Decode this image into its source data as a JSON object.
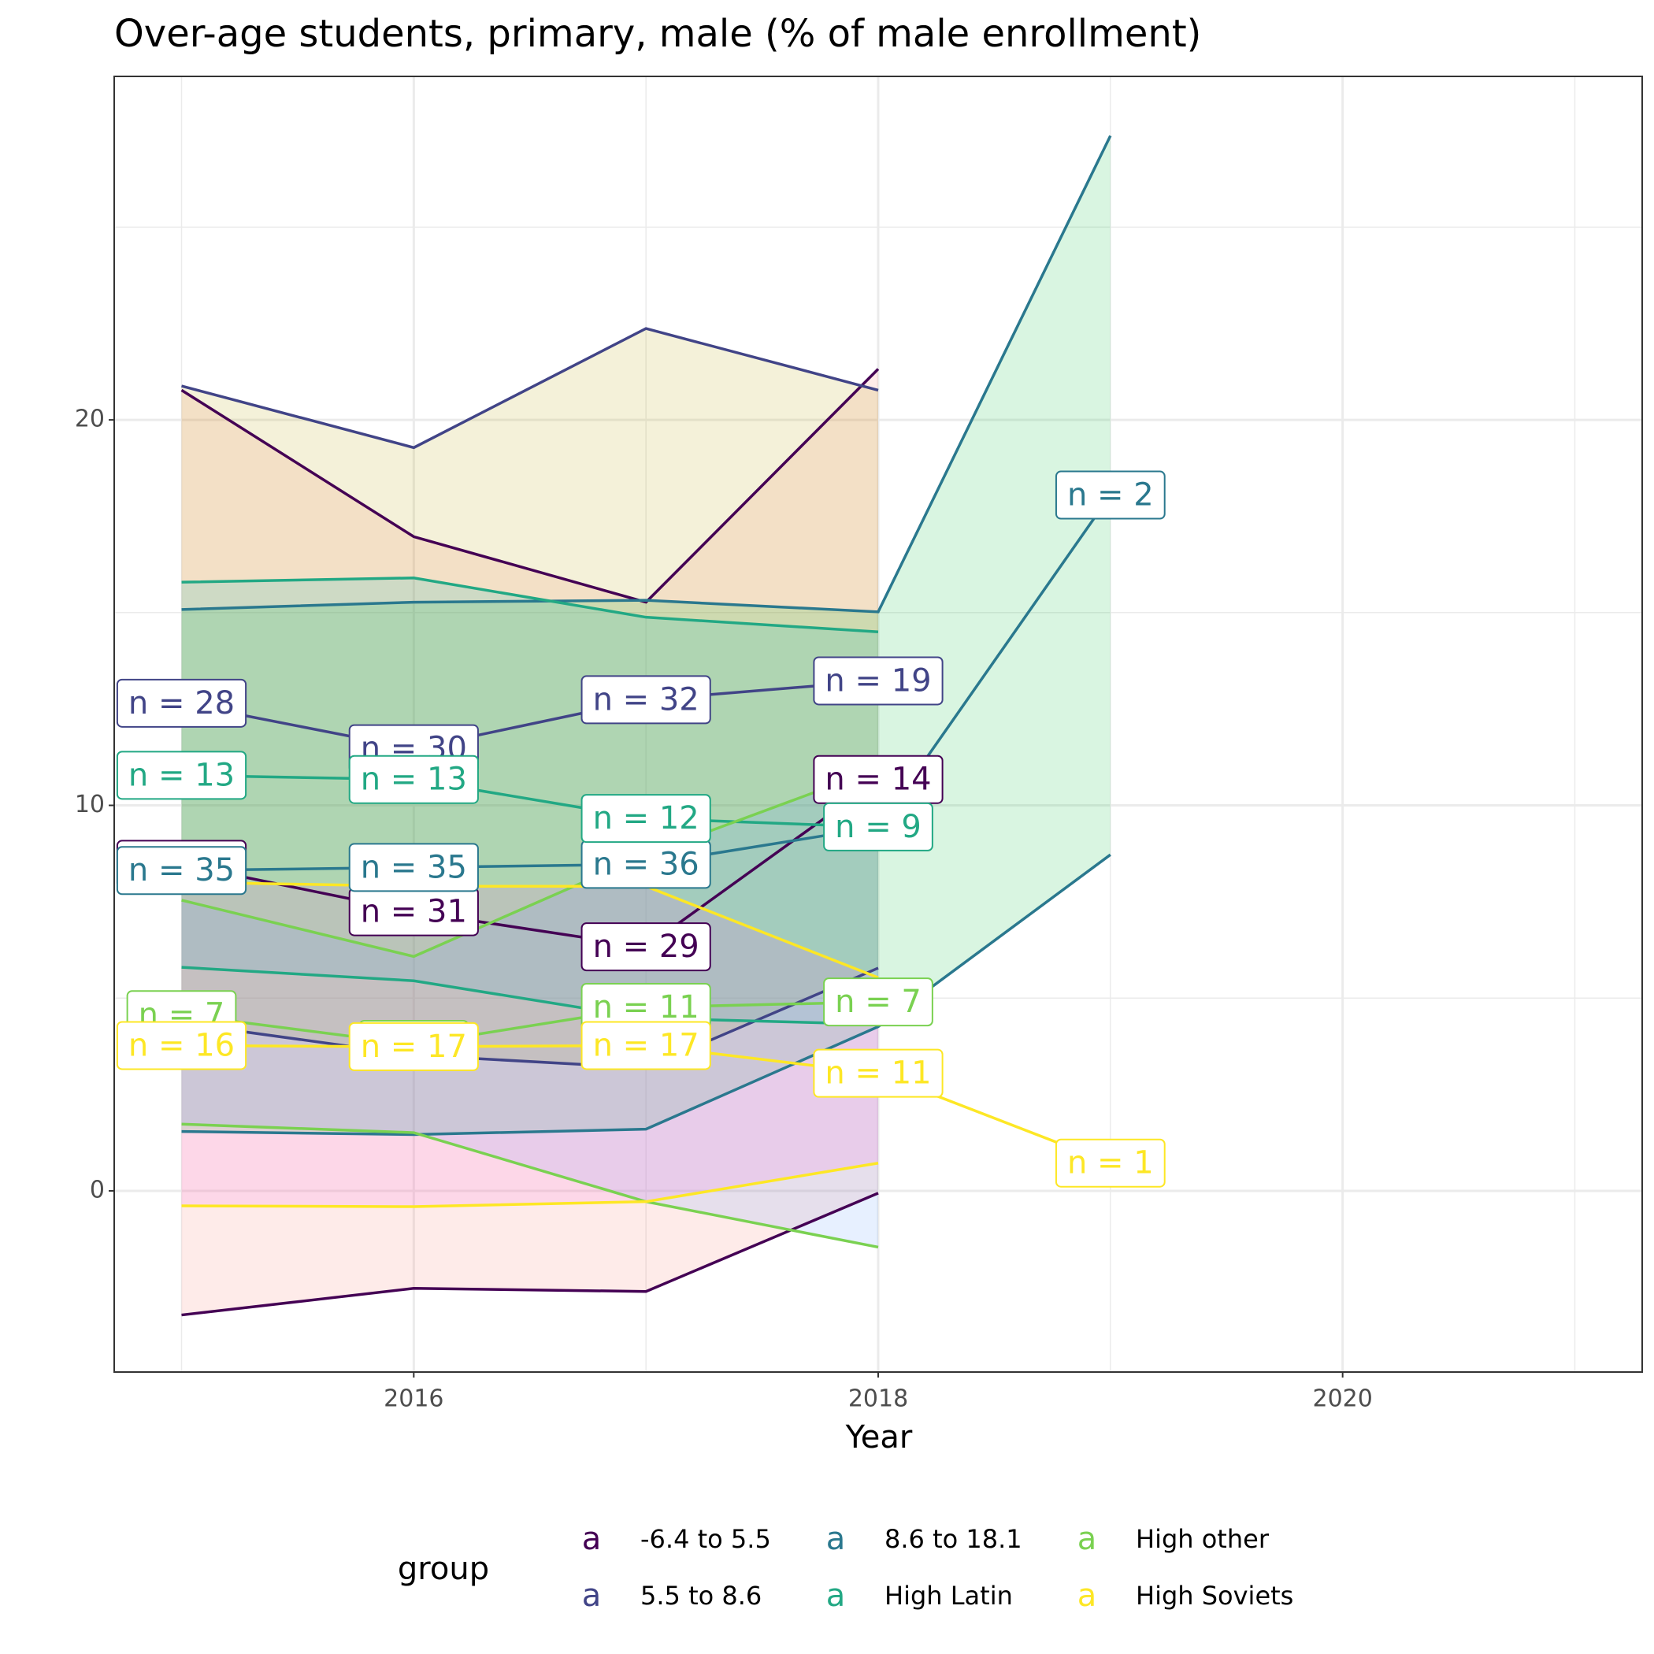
{
  "chart_data": {
    "type": "line",
    "title": "Over-age students, primary, male (% of male enrollment)",
    "x_label": "Year",
    "legend_title": "group",
    "legend_key_glyph": "a",
    "x": [
      2015,
      2016,
      2017,
      2018,
      2019
    ],
    "xlim": [
      2014.71,
      2021.29
    ],
    "xticks": [
      2016,
      2018,
      2020
    ],
    "x_minor_ticks": [
      2015,
      2017,
      2019,
      2021
    ],
    "ylim": [
      -4.7,
      28.91
    ],
    "yticks": [
      0,
      10,
      20
    ],
    "y_minor_ticks": [
      5,
      15,
      25
    ],
    "grid": true,
    "series": [
      {
        "name": "-6.4 to 5.5",
        "color": "#440154",
        "fill": "#F8766D",
        "values": [
          8.47,
          7.24,
          6.33,
          10.67,
          null
        ],
        "upper": [
          20.77,
          16.97,
          15.27,
          21.32,
          null
        ],
        "lower": [
          -3.22,
          -2.53,
          -2.61,
          -0.06,
          null
        ],
        "labels": [
          "n = 33",
          "n = 31",
          "n = 29",
          "n = 14",
          null
        ]
      },
      {
        "name": "5.5 to 8.6",
        "color": "#414487",
        "fill": "#B79F00",
        "values": [
          12.65,
          11.47,
          12.74,
          13.23,
          null
        ],
        "upper": [
          20.88,
          19.28,
          22.37,
          20.77,
          null
        ],
        "lower": [
          4.35,
          3.52,
          3.19,
          5.78,
          null
        ],
        "labels": [
          "n = 28",
          "n = 30",
          "n = 32",
          "n = 19",
          null
        ]
      },
      {
        "name": "8.6 to 18.1",
        "color": "#2A788E",
        "fill": "#00BA38",
        "values": [
          8.31,
          8.39,
          8.47,
          9.44,
          18.05
        ],
        "upper": [
          15.08,
          15.27,
          15.32,
          15.02,
          27.37
        ],
        "lower": [
          1.54,
          1.46,
          1.6,
          4.26,
          8.72
        ],
        "labels": [
          "n = 35",
          "n = 35",
          "n = 36",
          null,
          "n = 2"
        ]
      },
      {
        "name": "High Latin",
        "color": "#22A884",
        "fill": "#00BFC4",
        "values": [
          10.78,
          10.67,
          9.66,
          9.44,
          null
        ],
        "upper": [
          15.79,
          15.9,
          14.88,
          14.5,
          null
        ],
        "lower": [
          5.8,
          5.45,
          4.48,
          4.32,
          null
        ],
        "labels": [
          "n = 13",
          "n = 13",
          "n = 12",
          "n = 9",
          null
        ]
      },
      {
        "name": "High other",
        "color": "#7AD151",
        "fill": "#619CFF",
        "values": [
          4.57,
          3.8,
          4.76,
          4.9,
          null
        ],
        "upper": [
          7.54,
          6.08,
          8.72,
          10.95,
          null
        ],
        "lower": [
          1.73,
          1.51,
          -0.28,
          -1.46,
          null
        ],
        "labels": [
          "n = 7",
          "n = 8",
          "n = 11",
          "n = 7",
          null
        ]
      },
      {
        "name": "High Soviets",
        "color": "#FDE725",
        "fill": "#F564E3",
        "values": [
          3.77,
          3.74,
          3.77,
          3.05,
          0.72
        ],
        "upper": [
          8.01,
          7.9,
          7.9,
          5.53,
          null
        ],
        "lower": [
          -0.39,
          -0.41,
          -0.28,
          0.72,
          null
        ],
        "labels": [
          "n = 16",
          "n = 17",
          "n = 17",
          "n = 11",
          "n = 1"
        ]
      }
    ]
  }
}
